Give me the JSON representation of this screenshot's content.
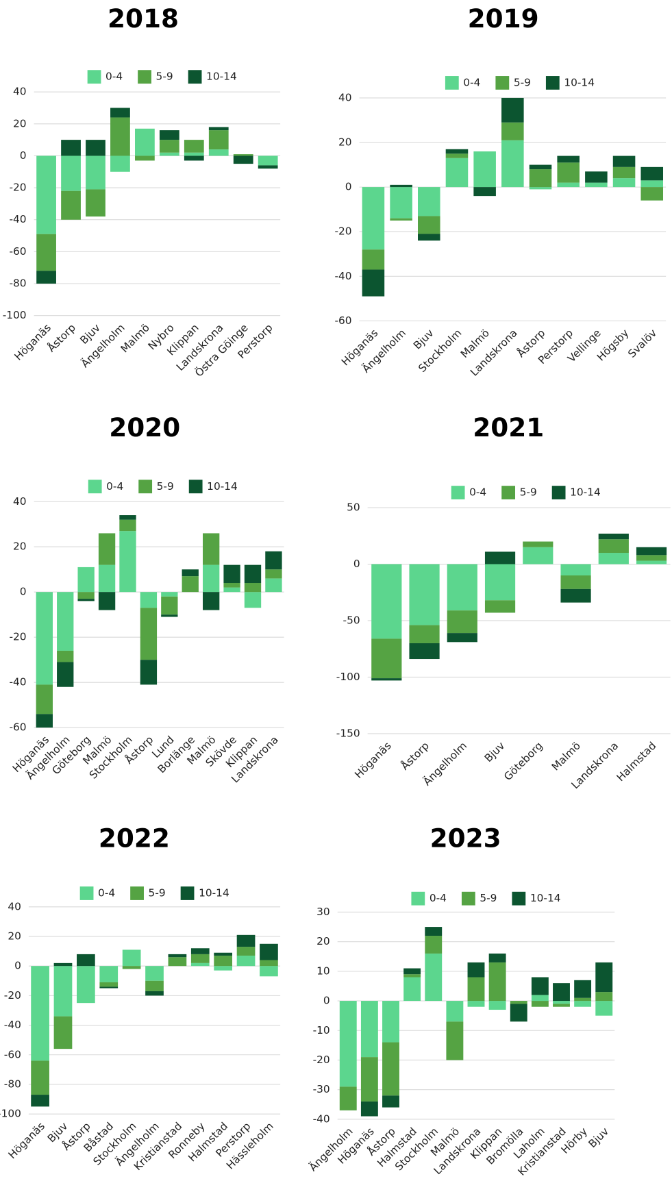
{
  "chart_data": [
    {
      "type": "bar",
      "stacked": true,
      "grid": true,
      "title": "2018",
      "categories": [
        "Höganäs",
        "Åstorp",
        "Bjuv",
        "Ängelholm",
        "Malmö",
        "Nybro",
        "Klippan",
        "Landskrona",
        "Östra Göinge",
        "Perstorp"
      ],
      "series": [
        {
          "name": "0-4",
          "color": "#5cd68e",
          "values": [
            -49,
            -22,
            -21,
            -10,
            17,
            2,
            2,
            4,
            0,
            -6
          ]
        },
        {
          "name": "5-9",
          "color": "#55a343",
          "values": [
            -23,
            -18,
            -17,
            24,
            -3,
            8,
            8,
            12,
            1,
            0
          ]
        },
        {
          "name": "10-14",
          "color": "#0c5530",
          "values": [
            -8,
            10,
            10,
            6,
            0,
            6,
            -3,
            2,
            -5,
            -2
          ]
        }
      ],
      "ylim": [
        -100,
        40
      ],
      "yticks": [
        -100,
        -80,
        -60,
        -40,
        -20,
        0,
        20,
        40
      ]
    },
    {
      "type": "bar",
      "stacked": true,
      "grid": true,
      "title": "2019",
      "categories": [
        "Höganäs",
        "Ängelholm",
        "Bjuv",
        "Stockholm",
        "Malmö",
        "Landskrona",
        "Åstorp",
        "Perstorp",
        "Vellinge",
        "Högsby",
        "Svalöv"
      ],
      "series": [
        {
          "name": "0-4",
          "color": "#5cd68e",
          "values": [
            -28,
            -14,
            -13,
            13,
            16,
            21,
            -1,
            2,
            2,
            4,
            3
          ]
        },
        {
          "name": "5-9",
          "color": "#55a343",
          "values": [
            -9,
            -1,
            -8,
            2,
            0,
            8,
            8,
            9,
            0,
            5,
            -6
          ]
        },
        {
          "name": "10-14",
          "color": "#0c5530",
          "values": [
            -12,
            1,
            -3,
            2,
            -4,
            11,
            2,
            3,
            5,
            5,
            6
          ]
        }
      ],
      "ylim": [
        -60,
        40
      ],
      "yticks": [
        -60,
        -40,
        -20,
        0,
        20,
        40
      ]
    },
    {
      "type": "bar",
      "stacked": true,
      "grid": true,
      "title": "2020",
      "categories": [
        "Höganäs",
        "Ängelholm",
        "Göteborg",
        "Malmö",
        "Stockholm",
        "Åstorp",
        "Lund",
        "Borlänge",
        "Malmö",
        "Skövde",
        "Klippan",
        "Landskrona"
      ],
      "series": [
        {
          "name": "0-4",
          "color": "#5cd68e",
          "values": [
            -41,
            -26,
            11,
            12,
            27,
            -7,
            -2,
            0,
            12,
            2,
            -7,
            6
          ]
        },
        {
          "name": "5-9",
          "color": "#55a343",
          "values": [
            -13,
            -5,
            -3,
            14,
            5,
            -23,
            -8,
            7,
            14,
            2,
            4,
            4
          ]
        },
        {
          "name": "10-14",
          "color": "#0c5530",
          "values": [
            -6,
            -11,
            -1,
            -8,
            2,
            -11,
            -1,
            3,
            -8,
            8,
            8,
            8
          ]
        }
      ],
      "ylim": [
        -60,
        40
      ],
      "yticks": [
        -60,
        -40,
        -20,
        0,
        20,
        40
      ]
    },
    {
      "type": "bar",
      "stacked": true,
      "grid": true,
      "title": "2021",
      "categories": [
        "Höganäs",
        "Åstorp",
        "Ängelholm",
        "Bjuv",
        "Göteborg",
        "Malmö",
        "Landskrona",
        "Halmstad"
      ],
      "series": [
        {
          "name": "0-4",
          "color": "#5cd68e",
          "values": [
            -66,
            -54,
            -41,
            -32,
            15,
            -10,
            10,
            3
          ]
        },
        {
          "name": "5-9",
          "color": "#55a343",
          "values": [
            -35,
            -16,
            -20,
            -11,
            5,
            -12,
            12,
            5
          ]
        },
        {
          "name": "10-14",
          "color": "#0c5530",
          "values": [
            -2,
            -14,
            -8,
            11,
            0,
            -12,
            5,
            7
          ]
        }
      ],
      "ylim": [
        -150,
        50
      ],
      "yticks": [
        -150,
        -100,
        -50,
        0,
        50
      ]
    },
    {
      "type": "bar",
      "stacked": true,
      "grid": true,
      "title": "2022",
      "categories": [
        "Höganäs",
        "Bjuv",
        "Åstorp",
        "Båstad",
        "Stockholm",
        "Ängelholm",
        "Kristianstad",
        "Ronneby",
        "Halmstad",
        "Perstorp",
        "Hässleholm"
      ],
      "series": [
        {
          "name": "0-4",
          "color": "#5cd68e",
          "values": [
            -64,
            -34,
            -25,
            -11,
            11,
            -10,
            0,
            2,
            -3,
            7,
            -7
          ]
        },
        {
          "name": "5-9",
          "color": "#55a343",
          "values": [
            -23,
            -22,
            0,
            -3,
            -2,
            -7,
            6,
            6,
            7,
            6,
            4
          ]
        },
        {
          "name": "10-14",
          "color": "#0c5530",
          "values": [
            -8,
            2,
            8,
            -1,
            0,
            -3,
            2,
            4,
            2,
            8,
            11
          ]
        }
      ],
      "ylim": [
        -100,
        40
      ],
      "yticks": [
        -100,
        -80,
        -60,
        -40,
        -20,
        0,
        20,
        40
      ]
    },
    {
      "type": "bar",
      "stacked": true,
      "grid": true,
      "title": "2023",
      "categories": [
        "Ängelholm",
        "Höganäs",
        "Åstorp",
        "Halmstad",
        "Stockholm",
        "Malmö",
        "Landskrona",
        "Klippan",
        "Bromölla",
        "Laholm",
        "Kristianstad",
        "Hörby",
        "Bjuv"
      ],
      "series": [
        {
          "name": "0-4",
          "color": "#5cd68e",
          "values": [
            -29,
            -19,
            -14,
            8,
            16,
            -7,
            -2,
            -3,
            0,
            2,
            -1,
            -2,
            -5
          ]
        },
        {
          "name": "5-9",
          "color": "#55a343",
          "values": [
            -8,
            -15,
            -18,
            1,
            6,
            -13,
            8,
            13,
            -1,
            -2,
            -1,
            1,
            3
          ]
        },
        {
          "name": "10-14",
          "color": "#0c5530",
          "values": [
            0,
            -5,
            -4,
            2,
            3,
            0,
            5,
            3,
            -6,
            6,
            6,
            6,
            10
          ]
        }
      ],
      "ylim": [
        -40,
        30
      ],
      "yticks": [
        -40,
        -30,
        -20,
        -10,
        0,
        10,
        20,
        30
      ]
    }
  ]
}
